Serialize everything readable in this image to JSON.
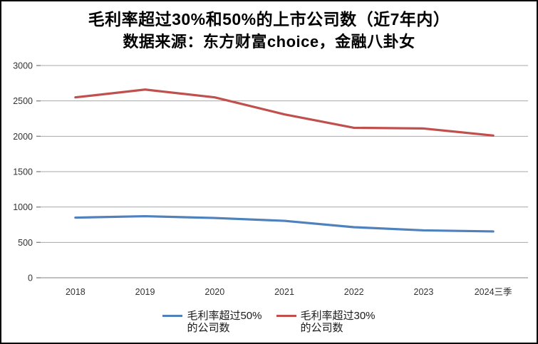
{
  "title": {
    "line1": "毛利率超过30%和50%的上市公司数（近7年内）",
    "line2": "数据来源：东方财富choice，金融八卦女"
  },
  "chart_data": {
    "type": "line",
    "categories": [
      "2018",
      "2019",
      "2020",
      "2021",
      "2022",
      "2023",
      "2024三季"
    ],
    "series": [
      {
        "name": "毛利率超过50%的公司数",
        "legend_line1": "毛利率超过50%",
        "legend_line2": "的公司数",
        "color": "#4F81BD",
        "values": [
          850,
          870,
          845,
          805,
          715,
          670,
          655
        ]
      },
      {
        "name": "毛利率超过30%的公司数",
        "legend_line1": "毛利率超过30%",
        "legend_line2": "的公司数",
        "color": "#C0504D",
        "values": [
          2550,
          2660,
          2550,
          2310,
          2120,
          2110,
          2010
        ]
      }
    ],
    "yticks": [
      0,
      500,
      1000,
      1500,
      2000,
      2500,
      3000
    ],
    "ylim": [
      0,
      3000
    ],
    "grid": true,
    "legend_position": "bottom",
    "axis_label_color": "#333333",
    "gridline_color": "#a8a8a8",
    "baseline_color": "#808080",
    "line_width": 3.2
  }
}
